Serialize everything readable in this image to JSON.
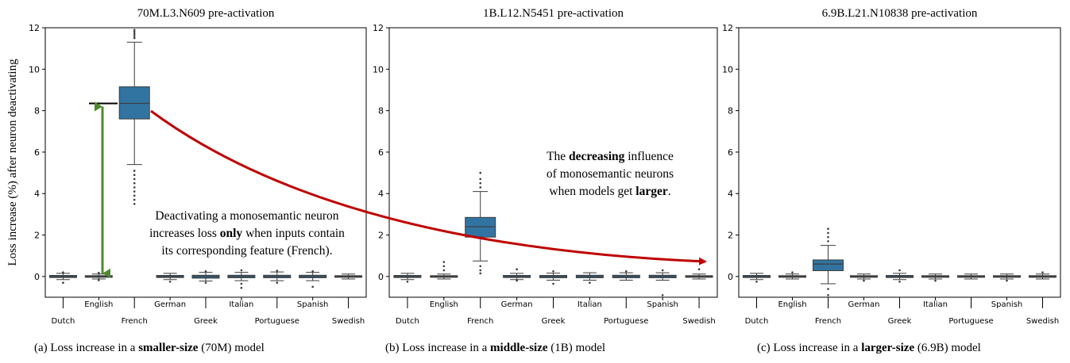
{
  "figure": {
    "ylabel": "Loss increase (%) after neuron deactivating",
    "captions": [
      {
        "pre": "(a) Loss increase in a ",
        "bold": "smaller-size",
        "post": " (70M) model"
      },
      {
        "pre": "(b) Loss increase in a ",
        "bold": "middle-size",
        "post": " (1B) model"
      },
      {
        "pre": "(c) Loss increase in a ",
        "bold": "larger-size",
        "post": " (6.9B) model"
      }
    ],
    "annotation_left": [
      [
        {
          "t": "Deactivating a monosemantic neuron",
          "b": false
        }
      ],
      [
        {
          "t": "increases loss ",
          "b": false
        },
        {
          "t": "only",
          "b": true
        },
        {
          "t": " when inputs contain",
          "b": false
        }
      ],
      [
        {
          "t": "its corresponding feature (French).",
          "b": false
        }
      ]
    ],
    "annotation_mid": [
      [
        {
          "t": "The ",
          "b": false
        },
        {
          "t": "decreasing",
          "b": true
        },
        {
          "t": " influence",
          "b": false
        }
      ],
      [
        {
          "t": "of monosemantic neurons",
          "b": false
        }
      ],
      [
        {
          "t": "when models get ",
          "b": false
        },
        {
          "t": "larger",
          "b": true
        },
        {
          "t": ".",
          "b": false
        }
      ]
    ],
    "colors": {
      "box": "#3274a1",
      "arrow_red": "#c00000",
      "arrow_green": "#4e8a2e"
    }
  },
  "chart_data": [
    {
      "type": "box",
      "title": "70M.L3.N609 pre-activation",
      "categories": [
        "Dutch",
        "English",
        "French",
        "German",
        "Greek",
        "Italian",
        "Portuguese",
        "Spanish",
        "Swedish"
      ],
      "ylim": [
        -1,
        12
      ],
      "yticks": [
        0,
        2,
        4,
        6,
        8,
        10,
        12
      ],
      "boxes": [
        {
          "q1": -0.05,
          "median": 0.0,
          "q3": 0.05,
          "whisker_low": -0.15,
          "whisker_high": 0.15,
          "fliers": [
            -0.3,
            0.2
          ]
        },
        {
          "q1": -0.04,
          "median": 0.0,
          "q3": 0.04,
          "whisker_low": -0.12,
          "whisker_high": 0.12,
          "fliers": [
            0.18,
            -0.18
          ]
        },
        {
          "q1": 7.6,
          "median": 8.35,
          "q3": 9.15,
          "whisker_low": 5.4,
          "whisker_high": 11.3,
          "fliers": [
            3.5,
            3.7,
            3.9,
            4.1,
            4.3,
            4.5,
            4.7,
            4.9,
            5.1,
            11.5,
            11.6,
            11.7,
            11.8,
            11.9
          ]
        },
        {
          "q1": -0.05,
          "median": 0.0,
          "q3": 0.05,
          "whisker_low": -0.15,
          "whisker_high": 0.15,
          "fliers": [
            -0.25
          ]
        },
        {
          "q1": -0.08,
          "median": -0.01,
          "q3": 0.06,
          "whisker_low": -0.22,
          "whisker_high": 0.2,
          "fliers": [
            -0.3,
            0.25
          ]
        },
        {
          "q1": -0.06,
          "median": 0.0,
          "q3": 0.06,
          "whisker_low": -0.2,
          "whisker_high": 0.2,
          "fliers": [
            -0.55,
            -0.35,
            0.3
          ]
        },
        {
          "q1": -0.06,
          "median": 0.0,
          "q3": 0.06,
          "whisker_low": -0.2,
          "whisker_high": 0.22,
          "fliers": [
            -0.3,
            0.28
          ]
        },
        {
          "q1": -0.06,
          "median": 0.0,
          "q3": 0.06,
          "whisker_low": -0.2,
          "whisker_high": 0.2,
          "fliers": [
            -0.5,
            0.25
          ]
        },
        {
          "q1": -0.04,
          "median": 0.0,
          "q3": 0.04,
          "whisker_low": -0.12,
          "whisker_high": 0.12,
          "fliers": []
        }
      ]
    },
    {
      "type": "box",
      "title": "1B.L12.N5451 pre-activation",
      "categories": [
        "Dutch",
        "English",
        "French",
        "German",
        "Greek",
        "Italian",
        "Portuguese",
        "Spanish",
        "Swedish"
      ],
      "ylim": [
        -1,
        12
      ],
      "yticks": [
        0,
        2,
        4,
        6,
        8,
        10,
        12
      ],
      "boxes": [
        {
          "q1": -0.05,
          "median": 0.0,
          "q3": 0.05,
          "whisker_low": -0.15,
          "whisker_high": 0.15,
          "fliers": [
            -0.25
          ]
        },
        {
          "q1": -0.04,
          "median": 0.0,
          "q3": 0.04,
          "whisker_low": -0.12,
          "whisker_high": 0.12,
          "fliers": [
            0.3,
            0.5,
            0.7
          ]
        },
        {
          "q1": 1.9,
          "median": 2.4,
          "q3": 2.85,
          "whisker_low": 0.75,
          "whisker_high": 4.1,
          "fliers": [
            0.15,
            0.3,
            0.5,
            4.3,
            4.5,
            4.7,
            5.0
          ]
        },
        {
          "q1": -0.05,
          "median": 0.0,
          "q3": 0.05,
          "whisker_low": -0.15,
          "whisker_high": 0.15,
          "fliers": [
            0.35,
            -0.2
          ]
        },
        {
          "q1": -0.06,
          "median": 0.0,
          "q3": 0.05,
          "whisker_low": -0.18,
          "whisker_high": 0.16,
          "fliers": [
            -0.35,
            0.25
          ]
        },
        {
          "q1": -0.06,
          "median": 0.0,
          "q3": 0.06,
          "whisker_low": -0.18,
          "whisker_high": 0.18,
          "fliers": [
            -0.3
          ]
        },
        {
          "q1": -0.06,
          "median": 0.0,
          "q3": 0.06,
          "whisker_low": -0.18,
          "whisker_high": 0.18,
          "fliers": [
            0.25
          ]
        },
        {
          "q1": -0.06,
          "median": 0.0,
          "q3": 0.06,
          "whisker_low": -0.18,
          "whisker_high": 0.18,
          "fliers": [
            -0.9,
            0.3
          ]
        },
        {
          "q1": -0.04,
          "median": 0.0,
          "q3": 0.04,
          "whisker_low": -0.12,
          "whisker_high": 0.12,
          "fliers": [
            0.35
          ]
        }
      ]
    },
    {
      "type": "box",
      "title": "6.9B.L21.N10838 pre-activation",
      "categories": [
        "Dutch",
        "English",
        "French",
        "German",
        "Greek",
        "Italian",
        "Portuguese",
        "Spanish",
        "Swedish"
      ],
      "ylim": [
        -1,
        12
      ],
      "yticks": [
        0,
        2,
        4,
        6,
        8,
        10,
        12
      ],
      "boxes": [
        {
          "q1": -0.05,
          "median": 0.0,
          "q3": 0.05,
          "whisker_low": -0.15,
          "whisker_high": 0.15,
          "fliers": [
            -0.25
          ]
        },
        {
          "q1": -0.04,
          "median": 0.0,
          "q3": 0.04,
          "whisker_low": -0.12,
          "whisker_high": 0.12,
          "fliers": [
            0.2
          ]
        },
        {
          "q1": 0.28,
          "median": 0.6,
          "q3": 0.8,
          "whisker_low": -0.35,
          "whisker_high": 1.5,
          "fliers": [
            -0.6,
            -0.9,
            1.7,
            1.9,
            2.1,
            2.3
          ]
        },
        {
          "q1": -0.04,
          "median": 0.0,
          "q3": 0.04,
          "whisker_low": -0.12,
          "whisker_high": 0.12,
          "fliers": [
            -0.2
          ]
        },
        {
          "q1": -0.05,
          "median": 0.0,
          "q3": 0.05,
          "whisker_low": -0.15,
          "whisker_high": 0.15,
          "fliers": [
            0.3,
            -0.25
          ]
        },
        {
          "q1": -0.04,
          "median": 0.0,
          "q3": 0.04,
          "whisker_low": -0.12,
          "whisker_high": 0.12,
          "fliers": [
            -0.2
          ]
        },
        {
          "q1": -0.04,
          "median": 0.0,
          "q3": 0.04,
          "whisker_low": -0.12,
          "whisker_high": 0.12,
          "fliers": []
        },
        {
          "q1": -0.04,
          "median": 0.0,
          "q3": 0.04,
          "whisker_low": -0.12,
          "whisker_high": 0.12,
          "fliers": [
            -0.2
          ]
        },
        {
          "q1": -0.04,
          "median": 0.0,
          "q3": 0.04,
          "whisker_low": -0.12,
          "whisker_high": 0.12,
          "fliers": [
            0.2
          ]
        }
      ]
    }
  ]
}
